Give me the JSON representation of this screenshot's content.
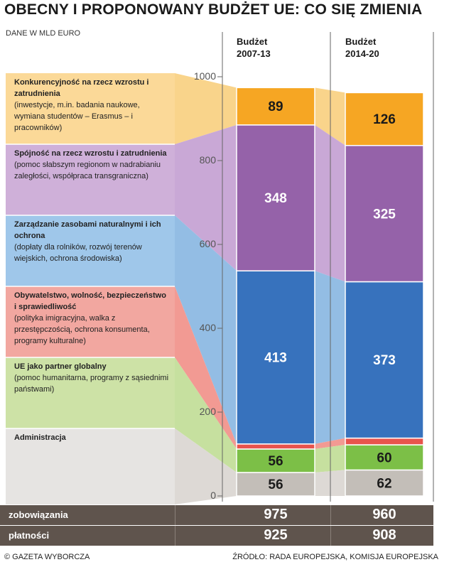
{
  "title": "OBECNY I PROPONOWANY BUDŻET UE: CO SIĘ ZMIENIA",
  "subtitle": "DANE W MLD EURO",
  "columns": [
    {
      "line1": "Budżet",
      "line2": "2007-13"
    },
    {
      "line1": "Budżet",
      "line2": "2014-20"
    }
  ],
  "categories": [
    {
      "name": "Konkurencyjność na rzecz wzrostu i zatrudnienia",
      "desc": "(inwestycje, m.in. badania naukowe, wymiana studentów – Erasmus – i pracowników)"
    },
    {
      "name": "Spójność na rzecz wzrostu i zatrudnienia",
      "desc": "(pomoc słabszym regionom w nadrabianiu zaległości, współpraca transgraniczna)"
    },
    {
      "name": "Zarządzanie zasobami naturalnymi i ich ochrona",
      "desc": "(dopłaty dla rolników, rozwój terenów wiejskich, ochrona środowiska)"
    },
    {
      "name": "Obywatelstwo, wolność, bezpieczeństwo i sprawiedliwość",
      "desc": "(polityka imigracyjna, walka z przestępczością, ochrona konsumenta, programy kulturalne)"
    },
    {
      "name": "UE jako partner globalny",
      "desc": "(pomoc humanitarna, programy z sąsiednimi państwami)"
    },
    {
      "name": "Administracja",
      "desc": ""
    }
  ],
  "footer": {
    "rows": [
      {
        "label": "zobowiązania",
        "values": [
          "975",
          "960"
        ]
      },
      {
        "label": "płatności",
        "values": [
          "925",
          "908"
        ]
      }
    ]
  },
  "credit": "© GAZETA WYBORCZA",
  "source": "ŹRÓDŁO: RADA EUROPEJSKA, KOMISJA EUROPEJSKA",
  "chart_data": {
    "type": "bar",
    "stacked": true,
    "categories": [
      "Budżet 2007-13",
      "Budżet 2014-20"
    ],
    "series": [
      {
        "name": "Administracja",
        "values": [
          56,
          62
        ],
        "color": "#c3beb8"
      },
      {
        "name": "UE jako partner globalny",
        "values": [
          56,
          60
        ],
        "color": "#7cbf47"
      },
      {
        "name": "Obywatelstwo, wolność, bezpieczeństwo i sprawiedliwość",
        "values": [
          12,
          16
        ],
        "color": "#e8534c"
      },
      {
        "name": "Zarządzanie zasobami naturalnymi i ich ochrona",
        "values": [
          413,
          373
        ],
        "color": "#3772bd"
      },
      {
        "name": "Spójność na rzecz wzrostu i zatrudnienia",
        "values": [
          348,
          325
        ],
        "color": "#9562a9"
      },
      {
        "name": "Konkurencyjność na rzecz wzrostu i zatrudnienia",
        "values": [
          89,
          126
        ],
        "color": "#f6a623"
      }
    ],
    "yticks": [
      "0",
      "200",
      "400",
      "600",
      "800",
      "1000"
    ],
    "ylim": [
      0,
      1000
    ],
    "panel_colors": [
      "#fbd998",
      "#cfb0d9",
      "#9fc7ea",
      "#f2a7a0",
      "#cde2a6",
      "#e6e4e2"
    ],
    "flow_colors": [
      "#f9d48b",
      "#c9a8d6",
      "#93bde4",
      "#f29a93",
      "#c6e09f",
      "#ddd9d5"
    ],
    "grid": false
  }
}
